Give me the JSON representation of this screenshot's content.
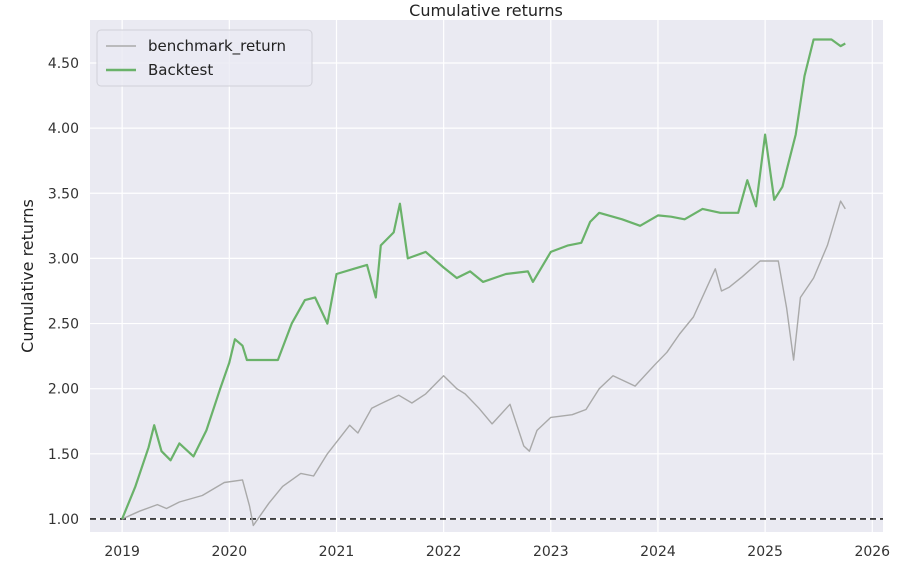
{
  "chart_data": {
    "type": "line",
    "title": "Cumulative returns",
    "xlabel": "",
    "ylabel": "Cumulative returns",
    "xlim": [
      2018.7,
      2026.1
    ],
    "ylim": [
      0.9,
      4.83
    ],
    "x_ticks": [
      2019,
      2020,
      2021,
      2022,
      2023,
      2024,
      2025,
      2026
    ],
    "x_tick_labels": [
      "2019",
      "2020",
      "2021",
      "2022",
      "2023",
      "2024",
      "2025",
      "2026"
    ],
    "y_ticks": [
      1.0,
      1.5,
      2.0,
      2.5,
      3.0,
      3.5,
      4.0,
      4.5
    ],
    "y_tick_labels": [
      "1.00",
      "1.50",
      "2.00",
      "2.50",
      "3.00",
      "3.50",
      "4.00",
      "4.50"
    ],
    "grid": true,
    "legend": {
      "position": "top-left"
    },
    "baseline": {
      "y": 1.0,
      "style": "dashed",
      "color": "#222222"
    },
    "background": "#eaeaf2",
    "series": [
      {
        "name": "benchmark_return",
        "color": "#a9a9a9",
        "points": [
          [
            "2019-01-01",
            1.0
          ],
          [
            "2019-03-01",
            1.06
          ],
          [
            "2019-05-01",
            1.11
          ],
          [
            "2019-06-01",
            1.08
          ],
          [
            "2019-07-15",
            1.13
          ],
          [
            "2019-10-01",
            1.18
          ],
          [
            "2019-12-15",
            1.28
          ],
          [
            "2020-02-15",
            1.3
          ],
          [
            "2020-03-10",
            1.1
          ],
          [
            "2020-03-23",
            0.95
          ],
          [
            "2020-05-15",
            1.12
          ],
          [
            "2020-07-01",
            1.25
          ],
          [
            "2020-09-01",
            1.35
          ],
          [
            "2020-10-15",
            1.33
          ],
          [
            "2020-12-01",
            1.5
          ],
          [
            "2021-02-15",
            1.72
          ],
          [
            "2021-03-15",
            1.66
          ],
          [
            "2021-05-01",
            1.85
          ],
          [
            "2021-06-15",
            1.9
          ],
          [
            "2021-08-01",
            1.95
          ],
          [
            "2021-09-15",
            1.89
          ],
          [
            "2021-11-01",
            1.96
          ],
          [
            "2022-01-01",
            2.1
          ],
          [
            "2022-02-15",
            2.0
          ],
          [
            "2022-03-15",
            1.96
          ],
          [
            "2022-05-01",
            1.85
          ],
          [
            "2022-06-15",
            1.73
          ],
          [
            "2022-08-15",
            1.88
          ],
          [
            "2022-10-01",
            1.56
          ],
          [
            "2022-10-20",
            1.52
          ],
          [
            "2022-11-15",
            1.68
          ],
          [
            "2023-01-01",
            1.78
          ],
          [
            "2023-03-15",
            1.8
          ],
          [
            "2023-05-01",
            1.84
          ],
          [
            "2023-06-15",
            2.0
          ],
          [
            "2023-08-01",
            2.1
          ],
          [
            "2023-10-15",
            2.02
          ],
          [
            "2023-12-20",
            2.18
          ],
          [
            "2024-02-01",
            2.28
          ],
          [
            "2024-03-15",
            2.42
          ],
          [
            "2024-05-01",
            2.55
          ],
          [
            "2024-07-15",
            2.92
          ],
          [
            "2024-08-05",
            2.75
          ],
          [
            "2024-09-01",
            2.78
          ],
          [
            "2024-10-15",
            2.86
          ],
          [
            "2024-12-15",
            2.98
          ],
          [
            "2025-02-15",
            2.98
          ],
          [
            "2025-03-15",
            2.62
          ],
          [
            "2025-04-08",
            2.22
          ],
          [
            "2025-05-01",
            2.7
          ],
          [
            "2025-06-15",
            2.85
          ],
          [
            "2025-08-01",
            3.1
          ],
          [
            "2025-09-15",
            3.44
          ],
          [
            "2025-10-01",
            3.38
          ]
        ]
      },
      {
        "name": "Backtest",
        "color": "#6ab26a",
        "points": [
          [
            "2019-01-01",
            1.0
          ],
          [
            "2019-02-15",
            1.25
          ],
          [
            "2019-04-01",
            1.55
          ],
          [
            "2019-04-20",
            1.72
          ],
          [
            "2019-05-15",
            1.52
          ],
          [
            "2019-06-15",
            1.45
          ],
          [
            "2019-07-15",
            1.58
          ],
          [
            "2019-09-01",
            1.48
          ],
          [
            "2019-10-15",
            1.68
          ],
          [
            "2019-12-01",
            2.0
          ],
          [
            "2020-01-01",
            2.2
          ],
          [
            "2020-01-20",
            2.38
          ],
          [
            "2020-02-15",
            2.33
          ],
          [
            "2020-03-01",
            2.22
          ],
          [
            "2020-04-15",
            2.22
          ],
          [
            "2020-06-15",
            2.22
          ],
          [
            "2020-08-01",
            2.5
          ],
          [
            "2020-09-15",
            2.68
          ],
          [
            "2020-10-20",
            2.7
          ],
          [
            "2020-12-01",
            2.5
          ],
          [
            "2021-01-01",
            2.88
          ],
          [
            "2021-03-01",
            2.92
          ],
          [
            "2021-04-15",
            2.95
          ],
          [
            "2021-05-15",
            2.7
          ],
          [
            "2021-06-01",
            3.1
          ],
          [
            "2021-07-15",
            3.2
          ],
          [
            "2021-08-05",
            3.42
          ],
          [
            "2021-09-01",
            3.0
          ],
          [
            "2021-11-01",
            3.05
          ],
          [
            "2022-01-01",
            2.93
          ],
          [
            "2022-02-15",
            2.85
          ],
          [
            "2022-04-01",
            2.9
          ],
          [
            "2022-05-15",
            2.82
          ],
          [
            "2022-08-01",
            2.88
          ],
          [
            "2022-10-15",
            2.9
          ],
          [
            "2022-11-01",
            2.82
          ],
          [
            "2023-01-01",
            3.05
          ],
          [
            "2023-03-01",
            3.1
          ],
          [
            "2023-04-15",
            3.12
          ],
          [
            "2023-05-15",
            3.28
          ],
          [
            "2023-06-15",
            3.35
          ],
          [
            "2023-09-01",
            3.3
          ],
          [
            "2023-11-01",
            3.25
          ],
          [
            "2024-01-01",
            3.33
          ],
          [
            "2024-02-15",
            3.32
          ],
          [
            "2024-04-01",
            3.3
          ],
          [
            "2024-06-01",
            3.38
          ],
          [
            "2024-08-01",
            3.35
          ],
          [
            "2024-10-01",
            3.35
          ],
          [
            "2024-11-01",
            3.6
          ],
          [
            "2024-12-01",
            3.4
          ],
          [
            "2025-01-01",
            3.95
          ],
          [
            "2025-02-01",
            3.45
          ],
          [
            "2025-03-01",
            3.55
          ],
          [
            "2025-04-15",
            3.95
          ],
          [
            "2025-05-15",
            4.4
          ],
          [
            "2025-06-15",
            4.68
          ],
          [
            "2025-08-15",
            4.68
          ],
          [
            "2025-09-15",
            4.63
          ],
          [
            "2025-10-01",
            4.65
          ]
        ]
      }
    ]
  }
}
